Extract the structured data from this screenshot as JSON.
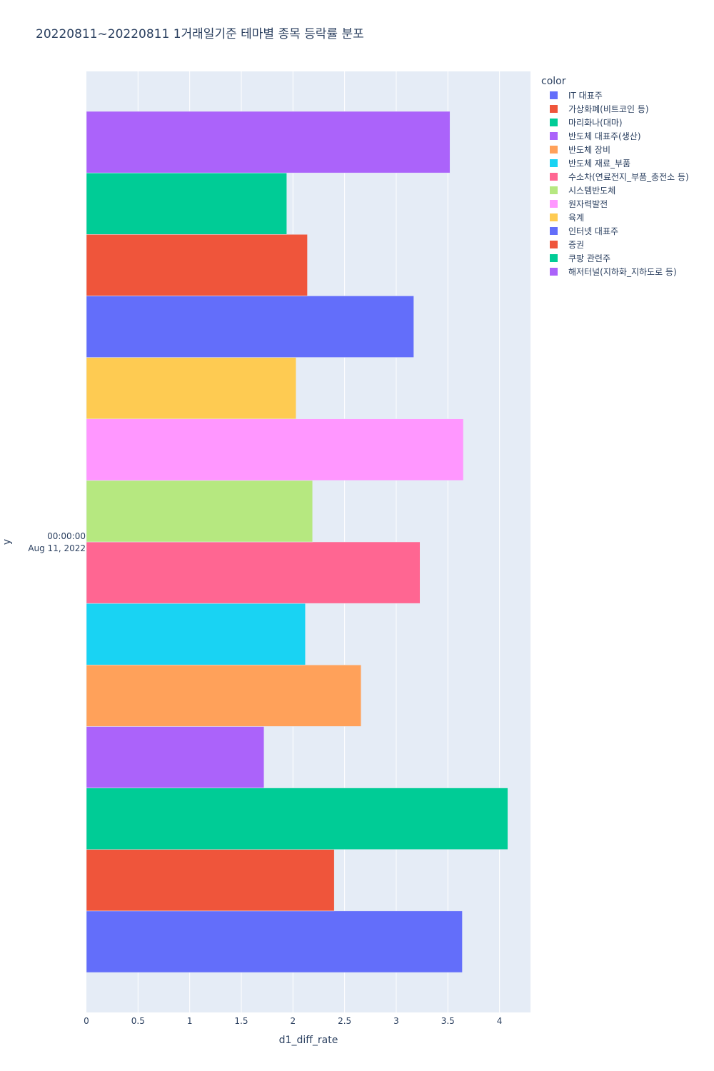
{
  "title": "20220811~20220811 1거래일기준 테마별 종목 등락률 분포",
  "chart_data": {
    "type": "bar",
    "orientation": "horizontal",
    "barmode": "group",
    "title": "20220811~20220811 1거래일기준 테마별 종목 등락률 분포",
    "xlabel": "d1_diff_rate",
    "ylabel": "y",
    "xlim": [
      0,
      4.3
    ],
    "x_ticks": [
      0,
      0.5,
      1,
      1.5,
      2,
      2.5,
      3,
      3.5,
      4
    ],
    "x_tick_labels": [
      "0",
      "0.5",
      "1",
      "1.5",
      "2",
      "2.5",
      "3",
      "3.5",
      "4"
    ],
    "y_category": {
      "line1": "00:00:00",
      "line2": "Aug 11, 2022"
    },
    "legend_title": "color",
    "legend_position": "right",
    "grid": true,
    "series": [
      {
        "name": "IT 대표주",
        "value": 3.64,
        "color": "#636efa"
      },
      {
        "name": "가상화폐(비트코인 등)",
        "value": 2.4,
        "color": "#EF553B"
      },
      {
        "name": "마리화나(대마)",
        "value": 4.08,
        "color": "#00cc96"
      },
      {
        "name": "반도체 대표주(생산)",
        "value": 1.72,
        "color": "#ab63fa"
      },
      {
        "name": "반도체 장비",
        "value": 2.66,
        "color": "#FFA15A"
      },
      {
        "name": "반도체 재료_부품",
        "value": 2.12,
        "color": "#19d3f3"
      },
      {
        "name": "수소차(연료전지_부품_충전소 등)",
        "value": 3.23,
        "color": "#FF6692"
      },
      {
        "name": "시스템반도체",
        "value": 2.19,
        "color": "#B6E880"
      },
      {
        "name": "원자력발전",
        "value": 3.65,
        "color": "#FF97FF"
      },
      {
        "name": "육계",
        "value": 2.03,
        "color": "#FECB52"
      },
      {
        "name": "인터넷 대표주",
        "value": 3.17,
        "color": "#636efa"
      },
      {
        "name": "증권",
        "value": 2.14,
        "color": "#EF553B"
      },
      {
        "name": "쿠팡 관련주",
        "value": 1.94,
        "color": "#00cc96"
      },
      {
        "name": "해저터널(지하화_지하도로 등)",
        "value": 3.52,
        "color": "#ab63fa"
      }
    ]
  }
}
